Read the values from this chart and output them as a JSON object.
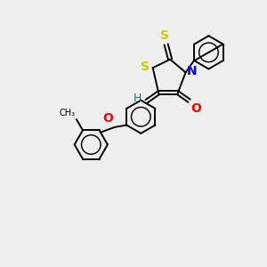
{
  "bg_color": "#efefef",
  "bond_color": "#000000",
  "S_color": "#cccc00",
  "N_color": "#0000ff",
  "O_color": "#ff0000",
  "H_color": "#008080",
  "font_size": 8,
  "line_width": 1.4,
  "fig_w": 3.0,
  "fig_h": 3.0,
  "dpi": 100,
  "xlim": [
    0,
    10
  ],
  "ylim": [
    0,
    10
  ]
}
